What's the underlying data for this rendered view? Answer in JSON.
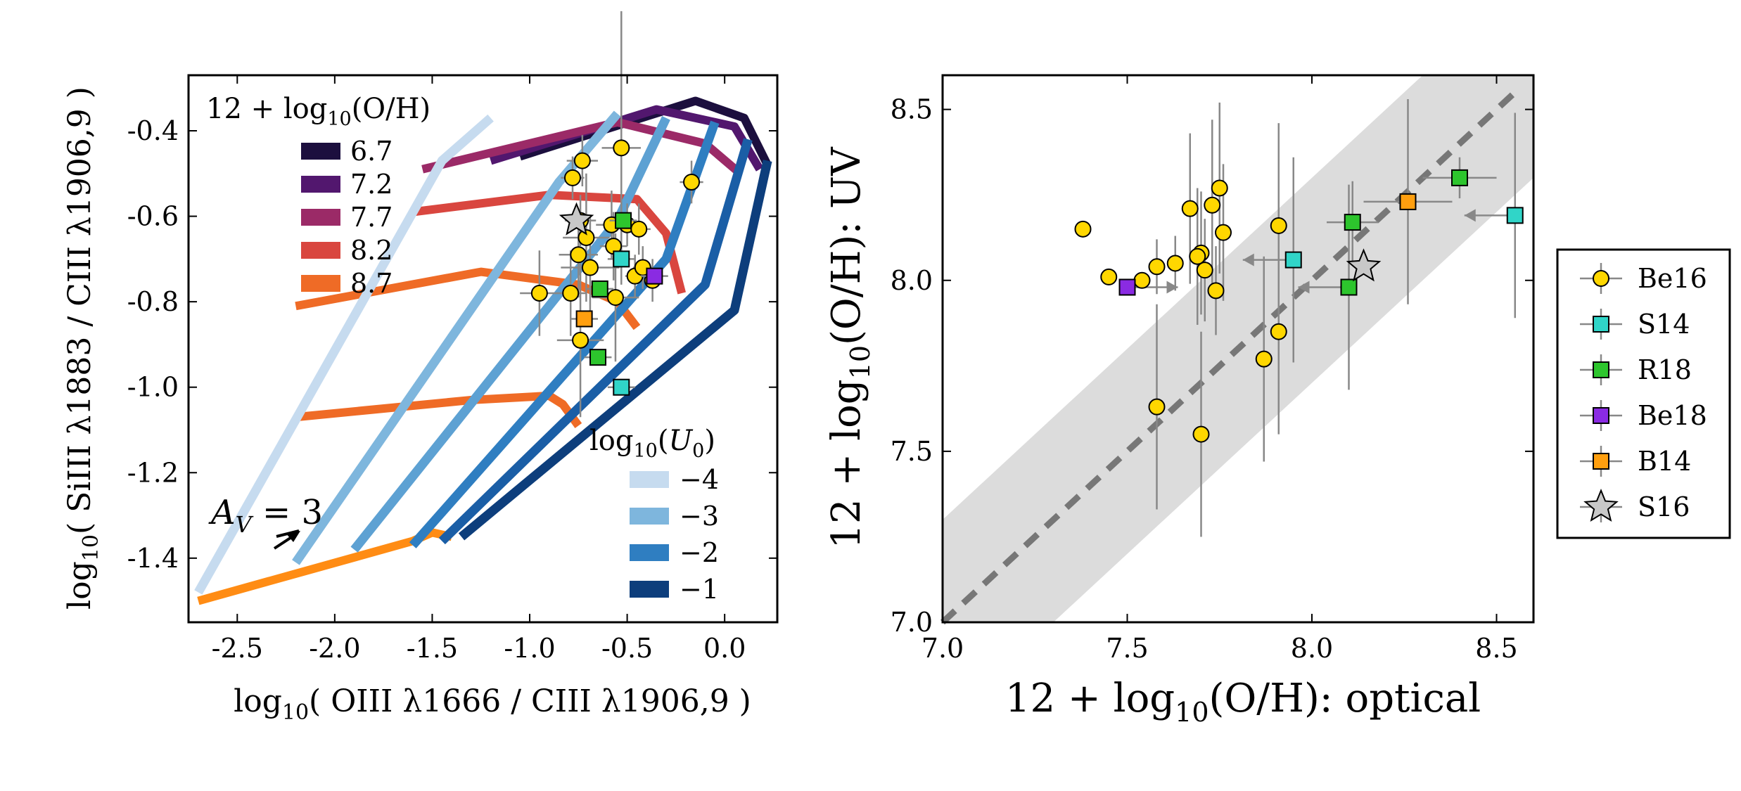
{
  "chart_data": [
    {
      "type": "line",
      "panel": "left",
      "xlabel_parts": [
        "log",
        "10",
        "( OIII λ1666 / CIII λ1906,9 )"
      ],
      "ylabel_parts": [
        "log",
        "10",
        "( SiIII λ1883 / CIII λ1906,9 )"
      ],
      "xlim": [
        -2.75,
        0.27
      ],
      "ylim": [
        -1.55,
        -0.27
      ],
      "xticks": [
        -2.5,
        -2.0,
        -1.5,
        -1.0,
        -0.5,
        0.0
      ],
      "xtick_labels": [
        "-2.5",
        "-2.0",
        "-1.5",
        "-1.0",
        "-0.5",
        "0.0"
      ],
      "yticks": [
        -1.4,
        -1.2,
        -1.0,
        -0.8,
        -0.6,
        -0.4
      ],
      "ytick_labels": [
        "-1.4",
        "-1.2",
        "-1.0",
        "-0.8",
        "-0.6",
        "-0.4"
      ],
      "metallicity_legend_title": "12 + log10(O/H)",
      "metallicity_legend_title_parts": [
        "12 + log",
        "10",
        "(O/H)"
      ],
      "metallicity_tracks": [
        {
          "name": "6.7",
          "color": "#1c0f3e",
          "points": [
            [
              -1.05,
              -0.46
            ],
            [
              -0.15,
              -0.33
            ],
            [
              0.1,
              -0.37
            ],
            [
              0.22,
              -0.48
            ]
          ]
        },
        {
          "name": "7.2",
          "color": "#52176e",
          "points": [
            [
              -1.2,
              -0.47
            ],
            [
              -0.35,
              -0.35
            ],
            [
              0.05,
              -0.39
            ],
            [
              0.18,
              -0.49
            ]
          ]
        },
        {
          "name": "7.7",
          "color": "#9b2a67",
          "points": [
            [
              -1.55,
              -0.49
            ],
            [
              -0.55,
              -0.38
            ],
            [
              -0.1,
              -0.43
            ],
            [
              0.08,
              -0.5
            ]
          ]
        },
        {
          "name": "8.2",
          "color": "#d9463f",
          "points": [
            [
              -1.6,
              -0.59
            ],
            [
              -0.9,
              -0.55
            ],
            [
              -0.45,
              -0.56
            ],
            [
              -0.3,
              -0.64
            ],
            [
              -0.22,
              -0.78
            ]
          ]
        },
        {
          "name": "8.7",
          "color": "#ef6b26",
          "points": [
            [
              -2.2,
              -0.81
            ],
            [
              -1.25,
              -0.73
            ],
            [
              -0.75,
              -0.76
            ],
            [
              -0.55,
              -0.8
            ],
            [
              -0.45,
              -0.86
            ]
          ]
        },
        {
          "name": "",
          "color": "#ef6b26",
          "points": [
            [
              -2.2,
              -1.07
            ],
            [
              -1.3,
              -1.03
            ],
            [
              -0.9,
              -1.02
            ],
            [
              -0.83,
              -1.04
            ],
            [
              -0.75,
              -1.09
            ]
          ]
        },
        {
          "name": "",
          "color": "#ff8c14",
          "points": [
            [
              -2.7,
              -1.5
            ],
            [
              -1.6,
              -1.36
            ],
            [
              -1.5,
              -1.34
            ],
            [
              -1.4,
              -1.35
            ]
          ]
        }
      ],
      "ionization_legend_title": "log10(U0)",
      "ionization_legend_title_parts": [
        "log",
        "10",
        "(",
        "U",
        "0",
        ")"
      ],
      "ionization_tracks": [
        {
          "name": "−4",
          "color": "#c6dbef",
          "points": [
            [
              -2.7,
              -1.48
            ],
            [
              -1.45,
              -0.47
            ],
            [
              -1.2,
              -0.37
            ]
          ]
        },
        {
          "name": "−3",
          "color": "#7eb6dd",
          "points": [
            [
              -2.2,
              -1.41
            ],
            [
              -0.85,
              -0.52
            ],
            [
              -0.55,
              -0.36
            ]
          ]
        },
        {
          "name": "",
          "color": "#5da1d3",
          "points": [
            [
              -1.9,
              -1.38
            ],
            [
              -0.55,
              -0.61
            ],
            [
              -0.3,
              -0.37
            ]
          ]
        },
        {
          "name": "−2",
          "color": "#2f7ec1",
          "points": [
            [
              -1.6,
              -1.37
            ],
            [
              -0.3,
              -0.7
            ],
            [
              -0.05,
              -0.38
            ]
          ]
        },
        {
          "name": "",
          "color": "#1a5ea6",
          "points": [
            [
              -1.45,
              -1.36
            ],
            [
              -0.1,
              -0.76
            ],
            [
              0.12,
              -0.42
            ]
          ]
        },
        {
          "name": "−1",
          "color": "#0d3e7c",
          "points": [
            [
              -1.35,
              -1.35
            ],
            [
              0.05,
              -0.82
            ],
            [
              0.22,
              -0.47
            ]
          ]
        }
      ],
      "annotation_parts": [
        "A",
        "V",
        " = 3"
      ],
      "points": [
        {
          "x": -0.78,
          "y": -0.51,
          "xerr": 0.06,
          "yerr": 0.05
        },
        {
          "x": -0.73,
          "y": -0.47,
          "xerr": 0.08,
          "yerr": 0.06
        },
        {
          "x": -0.53,
          "y": -0.44,
          "xerr": 0.1,
          "yerr": 0.32
        },
        {
          "x": -0.17,
          "y": -0.52,
          "xerr": 0.06,
          "yerr": 0.05
        },
        {
          "x": -0.71,
          "y": -0.65,
          "xerr": 0.12,
          "yerr": 0.15
        },
        {
          "x": -0.58,
          "y": -0.62,
          "xerr": 0.08,
          "yerr": 0.08
        },
        {
          "x": -0.5,
          "y": -0.62,
          "xerr": 0.06,
          "yerr": 0.05
        },
        {
          "x": -0.44,
          "y": -0.63,
          "xerr": 0.06,
          "yerr": 0.06
        },
        {
          "x": -0.57,
          "y": -0.67,
          "xerr": 0.07,
          "yerr": 0.08
        },
        {
          "x": -0.75,
          "y": -0.69,
          "xerr": 0.1,
          "yerr": 0.1
        },
        {
          "x": -0.69,
          "y": -0.72,
          "xerr": 0.15,
          "yerr": 0.12
        },
        {
          "x": -0.46,
          "y": -0.74,
          "xerr": 0.05,
          "yerr": 0.05
        },
        {
          "x": -0.42,
          "y": -0.72,
          "xerr": 0.05,
          "yerr": 0.05
        },
        {
          "x": -0.37,
          "y": -0.75,
          "xerr": 0.05,
          "yerr": 0.05
        },
        {
          "x": -0.95,
          "y": -0.78,
          "xerr": 0.1,
          "yerr": 0.1
        },
        {
          "x": -0.79,
          "y": -0.78,
          "xerr": 0.08,
          "yerr": 0.1
        },
        {
          "x": -0.56,
          "y": -0.79,
          "xerr": 0.12,
          "yerr": 0.15
        },
        {
          "x": -0.74,
          "y": -0.89,
          "xerr": 0.12,
          "yerr": 0.18
        },
        {
          "x": -0.74,
          "y": -0.61,
          "xerr": 0.08,
          "yerr": 0.06
        }
      ],
      "squares": [
        {
          "series": "R18",
          "x": -0.52,
          "y": -0.61
        },
        {
          "series": "R18",
          "x": -0.64,
          "y": -0.77
        },
        {
          "series": "R18",
          "x": -0.65,
          "y": -0.93
        },
        {
          "series": "S14",
          "x": -0.53,
          "y": -0.7
        },
        {
          "series": "S14",
          "x": -0.53,
          "y": -1.0
        },
        {
          "series": "Be18",
          "x": -0.36,
          "y": -0.74
        },
        {
          "series": "B14",
          "x": -0.72,
          "y": -0.84
        }
      ],
      "star": {
        "series": "S16",
        "x": -0.76,
        "y": -0.61
      }
    },
    {
      "type": "scatter",
      "panel": "right",
      "xlabel_parts": [
        "12 + log",
        "10",
        "(O/H): optical"
      ],
      "ylabel_parts": [
        "12 + log",
        "10",
        "(O/H): UV"
      ],
      "xlim": [
        7.0,
        8.6
      ],
      "ylim": [
        7.0,
        8.6
      ],
      "xticks": [
        7.0,
        7.5,
        8.0,
        8.5
      ],
      "xtick_labels": [
        "7.0",
        "7.5",
        "8.0",
        "8.5"
      ],
      "yticks": [
        7.0,
        7.5,
        8.0,
        8.5
      ],
      "ytick_labels": [
        "7.0",
        "7.5",
        "8.0",
        "8.5"
      ],
      "one_to_one_band": 0.3,
      "series": [
        {
          "name": "Be16",
          "marker": "circle",
          "color": "#ffd700",
          "points": [
            {
              "x": 7.38,
              "y": 8.15,
              "yerr": 0
            },
            {
              "x": 7.45,
              "y": 8.01,
              "yerr": 0
            },
            {
              "x": 7.54,
              "y": 8.0,
              "yerr": 0
            },
            {
              "x": 7.58,
              "y": 8.04,
              "yerr": 0.08
            },
            {
              "x": 7.63,
              "y": 8.05,
              "yerr": 0.08
            },
            {
              "x": 7.67,
              "y": 8.21,
              "yerr": 0.22
            },
            {
              "x": 7.7,
              "y": 8.08,
              "yerr": 0.18
            },
            {
              "x": 7.71,
              "y": 8.03,
              "yerr": 0.15
            },
            {
              "x": 7.73,
              "y": 8.22,
              "yerr": 0.25
            },
            {
              "x": 7.75,
              "y": 8.27,
              "yerr": 0.25
            },
            {
              "x": 7.76,
              "y": 8.14,
              "yerr": 0.2
            },
            {
              "x": 7.74,
              "y": 7.97,
              "yerr": 0.13
            },
            {
              "x": 7.69,
              "y": 8.07,
              "yerr": 0.2
            },
            {
              "x": 7.87,
              "y": 7.77,
              "yerr": 0.3
            },
            {
              "x": 7.91,
              "y": 7.85,
              "yerr": 0.3
            },
            {
              "x": 7.91,
              "y": 8.16,
              "yerr": 0.3
            },
            {
              "x": 7.58,
              "y": 7.63,
              "yerr": 0.3
            },
            {
              "x": 7.7,
              "y": 7.55,
              "yerr": 0.3
            }
          ]
        },
        {
          "name": "S14",
          "marker": "square",
          "color": "#30d5c8",
          "points": [
            {
              "x": 7.95,
              "y": 8.06,
              "yerr": 0.3,
              "xlimit": "left"
            },
            {
              "x": 8.55,
              "y": 8.19,
              "yerr": 0.3,
              "xlimit": "left"
            }
          ]
        },
        {
          "name": "R18",
          "marker": "square",
          "color": "#2dc52d",
          "points": [
            {
              "x": 8.11,
              "y": 8.17,
              "yerr": 0.12
            },
            {
              "x": 8.1,
              "y": 7.98,
              "yerr": 0.3,
              "xlimit": "left"
            },
            {
              "x": 8.4,
              "y": 8.3,
              "yerr": 0.06
            }
          ]
        },
        {
          "name": "Be18",
          "marker": "square",
          "color": "#8a2be2",
          "points": [
            {
              "x": 7.5,
              "y": 7.98,
              "yerr": 0,
              "xlimit": "right"
            }
          ]
        },
        {
          "name": "B14",
          "marker": "square",
          "color": "#ff9f0f",
          "points": [
            {
              "x": 8.26,
              "y": 8.23,
              "yerr": 0.3
            }
          ]
        },
        {
          "name": "S16",
          "marker": "star",
          "color": "#c8c8c8",
          "points": [
            {
              "x": 8.14,
              "y": 8.04,
              "yerr": 0
            }
          ]
        }
      ],
      "legend": [
        {
          "label": "Be16",
          "marker": "circle",
          "color": "#ffd700"
        },
        {
          "label": "S14",
          "marker": "square",
          "color": "#30d5c8"
        },
        {
          "label": "R18",
          "marker": "square",
          "color": "#2dc52d"
        },
        {
          "label": "Be18",
          "marker": "square",
          "color": "#8a2be2"
        },
        {
          "label": "B14",
          "marker": "square",
          "color": "#ff9f0f"
        },
        {
          "label": "S16",
          "marker": "star",
          "color": "#c8c8c8"
        }
      ]
    }
  ]
}
